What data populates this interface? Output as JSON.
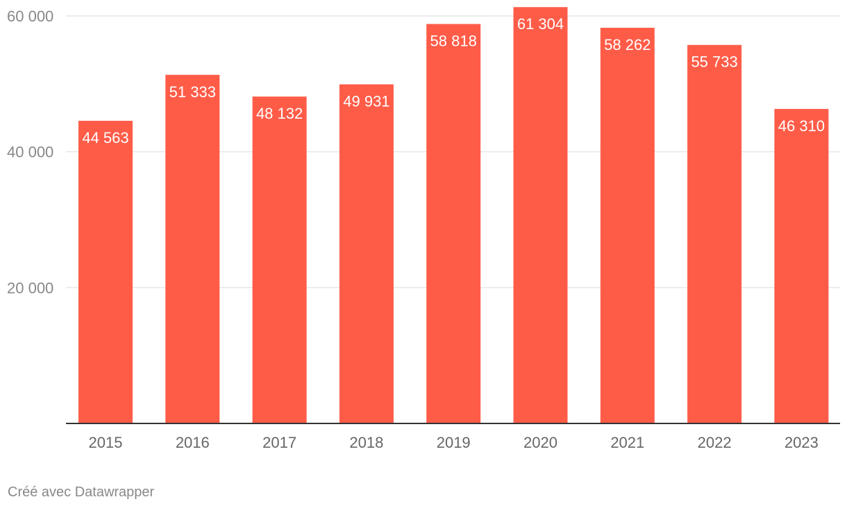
{
  "chart_data": {
    "type": "bar",
    "title": "",
    "xlabel": "",
    "ylabel": "",
    "categories": [
      "2015",
      "2016",
      "2017",
      "2018",
      "2019",
      "2020",
      "2021",
      "2022",
      "2023"
    ],
    "values": [
      44563,
      51333,
      48132,
      49931,
      58818,
      61304,
      58262,
      55733,
      46310
    ],
    "value_labels": [
      "44 563",
      "51 333",
      "48 132",
      "49 931",
      "58 818",
      "61 304",
      "58 262",
      "55 733",
      "46 310"
    ],
    "ylim": [
      0,
      60000
    ],
    "y_ticks": [
      {
        "value": 20000,
        "label": "20 000"
      },
      {
        "value": 40000,
        "label": "40 000"
      },
      {
        "value": 60000,
        "label": "60 000"
      }
    ],
    "grid": true,
    "legend": "none",
    "bar_color": "#ff5c48",
    "label_color": "#ffffff",
    "axis_text_color": "#888888",
    "category_text_color": "#666666",
    "grid_color": "#e6e6e6",
    "baseline_color": "#333333"
  },
  "footer": {
    "credit": "Créé avec Datawrapper"
  }
}
